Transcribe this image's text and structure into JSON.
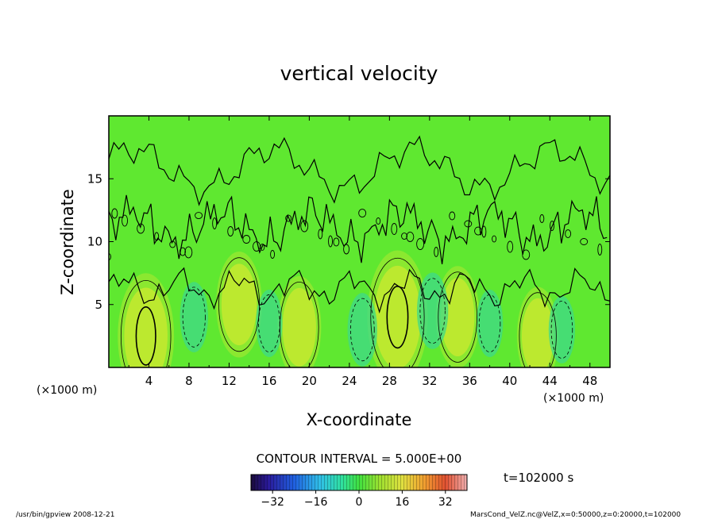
{
  "chart_data": {
    "type": "heatmap",
    "title": "vertical velocity",
    "xlabel": "X-coordinate",
    "ylabel": "Z-coordinate",
    "x_unit": "(×1000 m)",
    "x_unit_right": "(×1000 m)",
    "xlim": [
      0,
      50
    ],
    "ylim": [
      0,
      20
    ],
    "x_ticks": [
      "4",
      "8",
      "12",
      "16",
      "20",
      "24",
      "28",
      "32",
      "36",
      "40",
      "44",
      "48"
    ],
    "y_ticks": [
      "5",
      "10",
      "15"
    ],
    "x_tick_values": [
      4,
      8,
      12,
      16,
      20,
      24,
      28,
      32,
      36,
      40,
      44,
      48
    ],
    "y_tick_values": [
      5,
      10,
      15
    ],
    "contour_interval_label": "CONTOUR INTERVAL = 5.000E+00",
    "contour_interval": 5.0,
    "time_label": "t=102000 s",
    "colorbar": {
      "min": -40,
      "max": 40,
      "tick_labels": [
        "−32",
        "−16",
        "0",
        "16",
        "32"
      ],
      "tick_values": [
        -32,
        -16,
        0,
        16,
        32
      ]
    },
    "updraft_cores": [
      {
        "x": 3.7,
        "z": 2.5,
        "peak_w": 12
      },
      {
        "x": 13.0,
        "z": 5.0,
        "peak_w": 7
      },
      {
        "x": 19.0,
        "z": 3.2,
        "peak_w": 6
      },
      {
        "x": 28.8,
        "z": 4.0,
        "peak_w": 14
      },
      {
        "x": 34.8,
        "z": 4.0,
        "peak_w": 6
      },
      {
        "x": 42.8,
        "z": 2.5,
        "peak_w": 5
      }
    ],
    "downdraft_cores": [
      {
        "x": 8.5,
        "z": 4.0,
        "peak_w": -5
      },
      {
        "x": 16.0,
        "z": 3.5,
        "peak_w": -4
      },
      {
        "x": 25.3,
        "z": 3.0,
        "peak_w": -6
      },
      {
        "x": 32.3,
        "z": 4.5,
        "peak_w": -7
      },
      {
        "x": 38.0,
        "z": 3.5,
        "peak_w": -4
      },
      {
        "x": 45.2,
        "z": 3.0,
        "peak_w": -4
      }
    ]
  },
  "footer": {
    "left": "/usr/bin/gpview   2008-12-21",
    "right": "MarsCond_VelZ.nc@VelZ,x=0:50000,z=0:20000,t=102000"
  },
  "colors": {
    "background_green": "#5fe830",
    "updraft": "#c8e830",
    "downdraft": "#3ed98a",
    "contour": "#000000"
  }
}
